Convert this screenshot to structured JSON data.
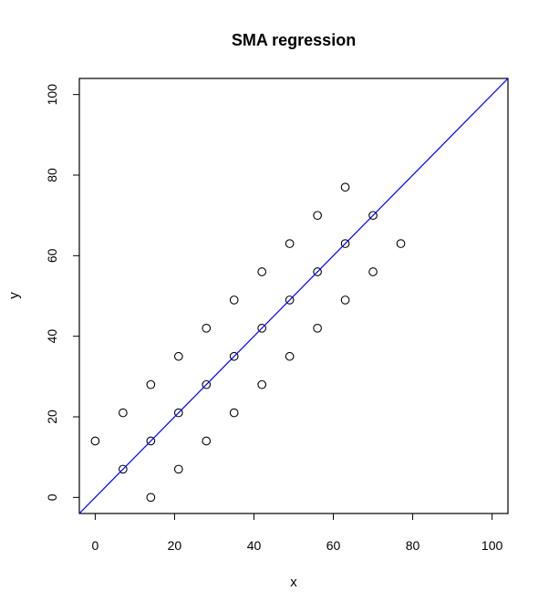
{
  "chart_data": {
    "type": "scatter",
    "title": "SMA regression",
    "xlabel": "x",
    "ylabel": "y",
    "xlim": [
      -4,
      104
    ],
    "ylim": [
      -4,
      104
    ],
    "x_ticks": [
      0,
      20,
      40,
      60,
      80,
      100
    ],
    "y_ticks": [
      0,
      20,
      40,
      60,
      80,
      100
    ],
    "x_tick_labels": [
      "0",
      "20",
      "40",
      "60",
      "80",
      "100"
    ],
    "y_tick_labels": [
      "0",
      "20",
      "40",
      "60",
      "80",
      "100"
    ],
    "grid": false,
    "series": [
      {
        "type": "scatter",
        "marker": "open-circle",
        "color": "#000000",
        "points": [
          {
            "x": 0,
            "y": 14
          },
          {
            "x": 7,
            "y": 7
          },
          {
            "x": 7,
            "y": 21
          },
          {
            "x": 14,
            "y": 0
          },
          {
            "x": 14,
            "y": 14
          },
          {
            "x": 14,
            "y": 28
          },
          {
            "x": 21,
            "y": 7
          },
          {
            "x": 21,
            "y": 21
          },
          {
            "x": 21,
            "y": 35
          },
          {
            "x": 28,
            "y": 14
          },
          {
            "x": 28,
            "y": 28
          },
          {
            "x": 28,
            "y": 42
          },
          {
            "x": 35,
            "y": 21
          },
          {
            "x": 35,
            "y": 35
          },
          {
            "x": 35,
            "y": 49
          },
          {
            "x": 42,
            "y": 28
          },
          {
            "x": 42,
            "y": 42
          },
          {
            "x": 42,
            "y": 56
          },
          {
            "x": 49,
            "y": 35
          },
          {
            "x": 49,
            "y": 49
          },
          {
            "x": 49,
            "y": 63
          },
          {
            "x": 56,
            "y": 42
          },
          {
            "x": 56,
            "y": 56
          },
          {
            "x": 56,
            "y": 70
          },
          {
            "x": 63,
            "y": 49
          },
          {
            "x": 63,
            "y": 63
          },
          {
            "x": 63,
            "y": 77
          },
          {
            "x": 70,
            "y": 56
          },
          {
            "x": 70,
            "y": 70
          },
          {
            "x": 77,
            "y": 63
          }
        ]
      },
      {
        "type": "line",
        "color": "#0000ff",
        "intercept": 0,
        "slope": 1
      }
    ]
  }
}
